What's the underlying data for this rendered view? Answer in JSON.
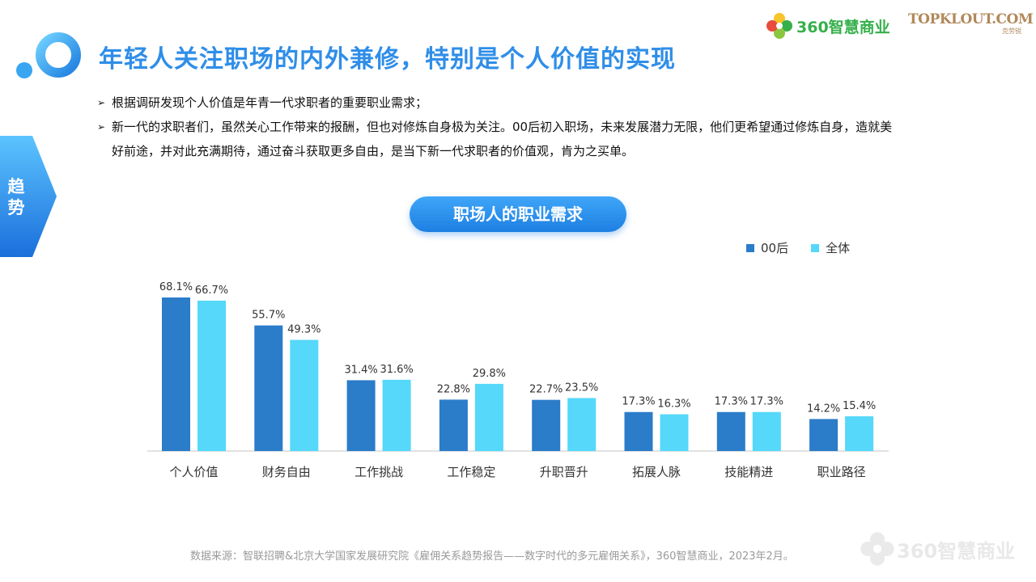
{
  "header": {
    "title": "年轻人关注职场的内外兼修，特别是个人价值的实现"
  },
  "brands": {
    "brand_360": "360智慧商业",
    "topklout_main": "TOPKLOUT.COM",
    "topklout_sub": "克劳锐"
  },
  "side_tab": {
    "label": "趋势"
  },
  "bullets": [
    "根据调研发现个人价值是年青一代求职者的重要职业需求；",
    "新一代的求职者们，虽然关心工作带来的报酬，但也对修炼自身极为关注。00后初入职场，未来发展潜力无限，他们更希望通过修炼自身，造就美好前途，并对此充满期待，通过奋斗获取更多自由，是当下新一代求职者的价值观，肯为之买单。"
  ],
  "chart_pill": "职场人的职业需求",
  "chart_data": {
    "type": "bar",
    "title": "职场人的职业需求",
    "categories": [
      "个人价值",
      "财务自由",
      "工作挑战",
      "工作稳定",
      "升职晋升",
      "拓展人脉",
      "技能精进",
      "职业路径"
    ],
    "series": [
      {
        "name": "00后",
        "color": "#2b7cc9",
        "values": [
          68.1,
          55.7,
          31.4,
          22.8,
          22.7,
          17.3,
          17.3,
          14.2
        ]
      },
      {
        "name": "全体",
        "color": "#55d8fa",
        "values": [
          66.7,
          49.3,
          31.6,
          29.8,
          23.5,
          16.3,
          17.3,
          15.4
        ]
      }
    ],
    "value_suffix": "%",
    "ylim": [
      0,
      70
    ],
    "grid": false,
    "legend": "top-right"
  },
  "footer": {
    "source": "数据来源：智联招聘&北京大学国家发展研究院《雇佣关系趋势报告——数字时代的多元雇佣关系》，360智慧商业，2023年2月。",
    "watermark": "360智慧商业"
  }
}
